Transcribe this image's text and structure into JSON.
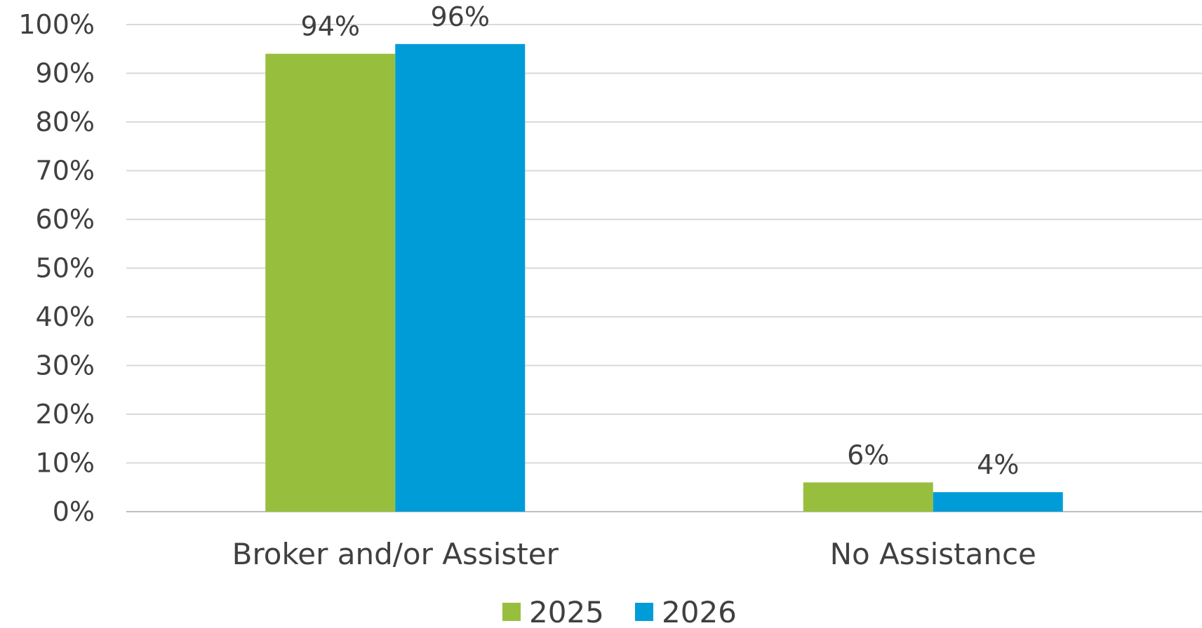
{
  "chart_data": {
    "type": "bar",
    "categories": [
      "Broker and/or Assister",
      "No Assistance"
    ],
    "series": [
      {
        "name": "2025",
        "values": [
          94,
          6
        ],
        "labels": [
          "94%",
          "6%"
        ],
        "color": "#97BF3D"
      },
      {
        "name": "2026",
        "values": [
          96,
          4
        ],
        "labels": [
          "96%",
          "4%"
        ],
        "color": "#009CD8"
      }
    ],
    "ylim": [
      0,
      100
    ],
    "yticks": [
      0,
      10,
      20,
      30,
      40,
      50,
      60,
      70,
      80,
      90,
      100
    ],
    "ytick_labels": [
      "0%",
      "10%",
      "20%",
      "30%",
      "40%",
      "50%",
      "60%",
      "70%",
      "80%",
      "90%",
      "100%"
    ],
    "grid": true,
    "legend_position": "bottom",
    "title": "",
    "xlabel": "",
    "ylabel": ""
  }
}
